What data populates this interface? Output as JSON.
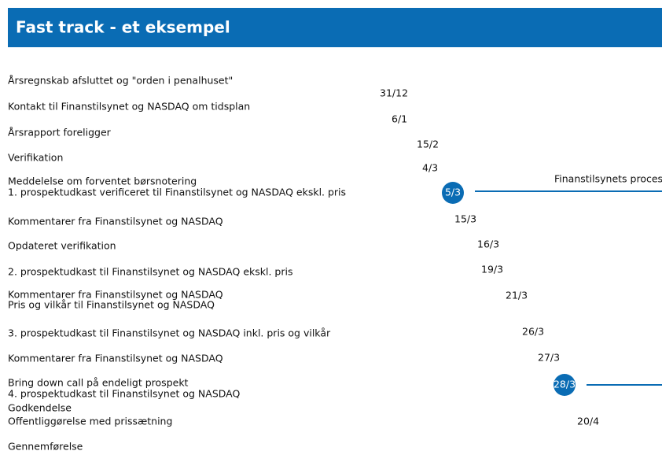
{
  "header": {
    "title": "Fast track - et eksempel"
  },
  "labels": [
    "Årsregnskab afsluttet og \"orden i penalhuset\"",
    "Kontakt til Finanstilsynet og NASDAQ om tidsplan",
    "Årsrapport foreligger",
    "Verifikation",
    "Meddelelse om forventet børsnotering",
    "1. prospektudkast verificeret til Finanstilsynet og NASDAQ ekskl. pris",
    "Kommentarer fra Finanstilsynet og NASDAQ",
    "Opdateret verifikation",
    "2. prospektudkast til Finanstilsynet og NASDAQ ekskl. pris",
    "Kommentarer fra Finanstilsynet og NASDAQ",
    "Pris og vilkår til Finanstilsynet og NASDAQ",
    "3. prospektudkast til Finanstilsynet og NASDAQ inkl. pris og vilkår",
    "Kommentarer fra Finanstilsynet og NASDAQ",
    "Bring down call på endeligt prospekt",
    "4. prospektudkast til Finanstilsynet og NASDAQ",
    "Godkendelse",
    "Offentliggørelse med prissætning",
    "Gennemførelse"
  ],
  "dates": [
    "31/12",
    "6/1",
    "15/2",
    "4/3",
    "5/3",
    "15/3",
    "16/3",
    "19/3",
    "21/3",
    "26/3",
    "27/3",
    "28/3",
    "20/4"
  ],
  "process_label": "Finanstilsynets proces"
}
